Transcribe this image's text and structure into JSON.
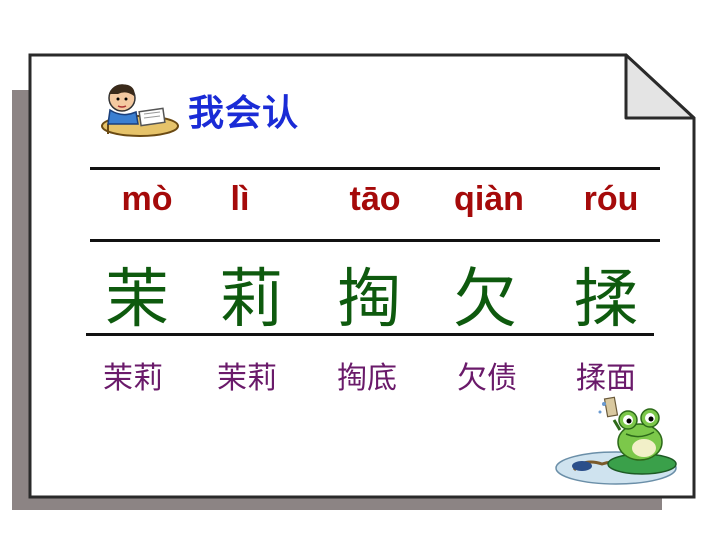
{
  "title": "我会认",
  "pinyin": [
    "mò",
    "lì",
    "tāo",
    "qiàn",
    "róu"
  ],
  "characters": [
    "茉",
    "莉",
    "掏",
    "欠",
    "揉"
  ],
  "words": [
    "茉莉",
    "茉莉",
    "掏底",
    "欠债",
    "揉面"
  ],
  "colors": {
    "title": "#1a2bd6",
    "pinyin": "#a50a0a",
    "characters": "#0e5a0e",
    "words": "#6a1a6a",
    "shadow": "#8c8484"
  },
  "icons": [
    "student-reading-icon",
    "frog-on-lilypad-icon"
  ]
}
